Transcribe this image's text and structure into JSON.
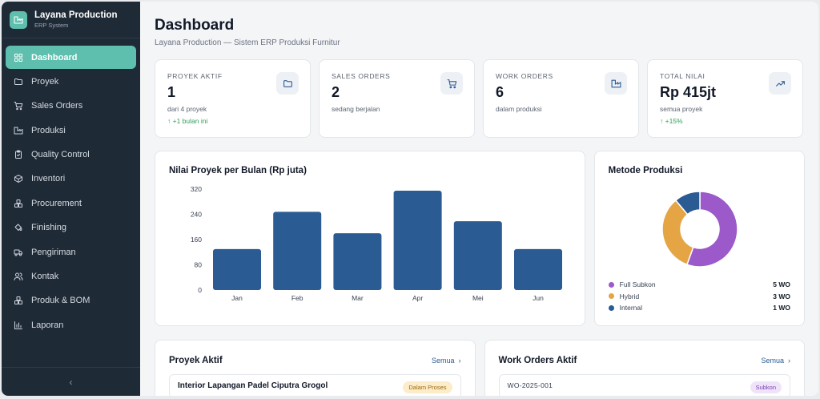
{
  "brand": {
    "name": "Layana Production",
    "subtitle": "ERP System"
  },
  "sidebar": {
    "items": [
      {
        "label": "Dashboard",
        "icon": "grid-icon",
        "active": true
      },
      {
        "label": "Proyek",
        "icon": "folder-icon"
      },
      {
        "label": "Sales Orders",
        "icon": "cart-icon"
      },
      {
        "label": "Produksi",
        "icon": "factory-icon"
      },
      {
        "label": "Quality Control",
        "icon": "clipboard-icon"
      },
      {
        "label": "Inventori",
        "icon": "box-icon"
      },
      {
        "label": "Procurement",
        "icon": "boxes-icon"
      },
      {
        "label": "Finishing",
        "icon": "paint-bucket-icon"
      },
      {
        "label": "Pengiriman",
        "icon": "truck-icon"
      },
      {
        "label": "Kontak",
        "icon": "users-icon"
      },
      {
        "label": "Produk & BOM",
        "icon": "boxes-icon"
      },
      {
        "label": "Laporan",
        "icon": "bar-chart-icon"
      }
    ],
    "collapse_label": "‹"
  },
  "header": {
    "title": "Dashboard",
    "subtitle": "Layana Production — Sistem ERP Produksi Furnitur"
  },
  "stats": [
    {
      "label": "PROYEK AKTIF",
      "value": "1",
      "desc": "dari 4 proyek",
      "trend": "↑ +1 bulan ini",
      "icon": "folder-icon"
    },
    {
      "label": "SALES ORDERS",
      "value": "2",
      "desc": "sedang berjalan",
      "trend": "",
      "icon": "cart-icon"
    },
    {
      "label": "WORK ORDERS",
      "value": "6",
      "desc": "dalam produksi",
      "trend": "",
      "icon": "factory-icon"
    },
    {
      "label": "TOTAL NILAI",
      "value": "Rp 415jt",
      "desc": "semua proyek",
      "trend": "↑ +15%",
      "icon": "trending-up-icon"
    }
  ],
  "colors": {
    "accent": "#5fbfae",
    "bar": "#2b5b93",
    "sidebar": "#1f2a37",
    "trend_up": "#2f9e5b"
  },
  "chart_data": [
    {
      "type": "bar",
      "title": "Nilai Proyek per Bulan (Rp juta)",
      "categories": [
        "Jan",
        "Feb",
        "Mar",
        "Apr",
        "Mei",
        "Jun"
      ],
      "values": [
        130,
        248,
        180,
        315,
        218,
        130
      ],
      "yticks": [
        0,
        80,
        160,
        240,
        320
      ],
      "ylim": [
        0,
        320
      ],
      "grid": false,
      "xlabel": "",
      "ylabel": ""
    },
    {
      "type": "pie",
      "title": "Metode Produksi",
      "series": [
        {
          "name": "Full Subkon",
          "value": 5,
          "label": "5 WO",
          "color": "#9b59c9"
        },
        {
          "name": "Hybrid",
          "value": 3,
          "label": "3 WO",
          "color": "#e5a545"
        },
        {
          "name": "Internal",
          "value": 1,
          "label": "1 WO",
          "color": "#2b5b93"
        }
      ],
      "legend": "bottom"
    }
  ],
  "proyek_aktif": {
    "title": "Proyek Aktif",
    "link": "Semua",
    "items": [
      {
        "name": "Interior Lapangan Padel Ciputra Grogol",
        "status": "Dalam Proses"
      }
    ]
  },
  "work_orders": {
    "title": "Work Orders Aktif",
    "link": "Semua",
    "items": [
      {
        "code": "WO-2025-001",
        "method": "Subkon"
      }
    ]
  }
}
